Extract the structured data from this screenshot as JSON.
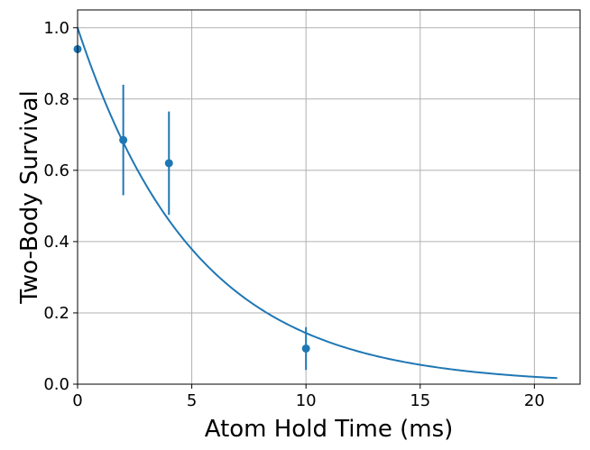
{
  "chart_data": {
    "type": "scatter",
    "title": "",
    "xlabel": "Atom Hold Time (ms)",
    "ylabel": "Two-Body Survival",
    "xlim": [
      0,
      22
    ],
    "ylim": [
      0,
      1.05
    ],
    "xticks": [
      0,
      5,
      10,
      15,
      20
    ],
    "yticks": [
      0.0,
      0.2,
      0.4,
      0.6,
      0.8,
      1.0
    ],
    "xtick_labels": [
      "0",
      "5",
      "10",
      "15",
      "20"
    ],
    "ytick_labels": [
      "0.0",
      "0.2",
      "0.4",
      "0.6",
      "0.8",
      "1.0"
    ],
    "grid": true,
    "color": "#1f77b4",
    "series": [
      {
        "kind": "errorbar",
        "points": [
          {
            "x": 0,
            "y": 0.94,
            "yerr": 0
          },
          {
            "x": 2,
            "y": 0.685,
            "yerr": 0.155
          },
          {
            "x": 4,
            "y": 0.62,
            "yerr": 0.145
          },
          {
            "x": 10,
            "y": 0.1,
            "yerr": 0.06
          }
        ]
      },
      {
        "kind": "fit-curve",
        "x_range": [
          0,
          21
        ],
        "function": "exp(-x/5.15)"
      }
    ]
  }
}
